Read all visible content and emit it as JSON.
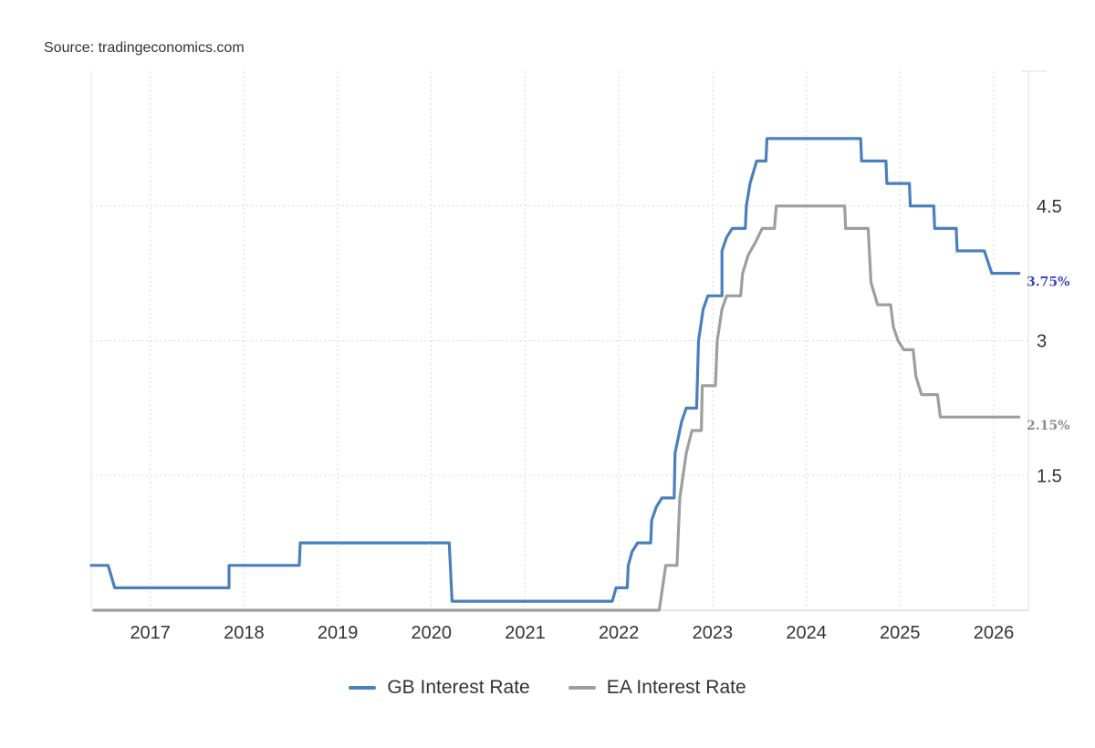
{
  "source_text": "Source: tradingeconomics.com",
  "chart_data": {
    "type": "line",
    "xlabel": "",
    "ylabel": "",
    "x_ticks": [
      "2017",
      "2018",
      "2019",
      "2020",
      "2021",
      "2022",
      "2023",
      "2024",
      "2025",
      "2026"
    ],
    "y_ticks": [
      1.5,
      3,
      4.5
    ],
    "y_tick_labels": [
      "1.5",
      "3",
      "4.5"
    ],
    "xlim": [
      2016.37,
      2026.37
    ],
    "ylim": [
      0,
      6
    ],
    "grid": true,
    "legend_position": "bottom",
    "series": [
      {
        "name": "GB Interest Rate",
        "color": "#4a7fbf",
        "end_label": "3.75%",
        "end_label_color": "#3a45c8",
        "points": [
          [
            2016.37,
            0.5
          ],
          [
            2016.55,
            0.5
          ],
          [
            2016.62,
            0.25
          ],
          [
            2017.84,
            0.25
          ],
          [
            2017.84,
            0.5
          ],
          [
            2018.59,
            0.5
          ],
          [
            2018.6,
            0.75
          ],
          [
            2020.19,
            0.75
          ],
          [
            2020.22,
            0.1
          ],
          [
            2021.93,
            0.1
          ],
          [
            2021.97,
            0.25
          ],
          [
            2022.09,
            0.25
          ],
          [
            2022.1,
            0.5
          ],
          [
            2022.14,
            0.65
          ],
          [
            2022.2,
            0.75
          ],
          [
            2022.34,
            0.75
          ],
          [
            2022.35,
            1.0
          ],
          [
            2022.4,
            1.15
          ],
          [
            2022.46,
            1.25
          ],
          [
            2022.59,
            1.25
          ],
          [
            2022.6,
            1.75
          ],
          [
            2022.67,
            2.1
          ],
          [
            2022.72,
            2.25
          ],
          [
            2022.83,
            2.25
          ],
          [
            2022.85,
            3.0
          ],
          [
            2022.9,
            3.35
          ],
          [
            2022.95,
            3.5
          ],
          [
            2023.1,
            3.5
          ],
          [
            2023.1,
            4.0
          ],
          [
            2023.15,
            4.15
          ],
          [
            2023.21,
            4.25
          ],
          [
            2023.35,
            4.25
          ],
          [
            2023.36,
            4.5
          ],
          [
            2023.4,
            4.75
          ],
          [
            2023.47,
            5.0
          ],
          [
            2023.57,
            5.0
          ],
          [
            2023.58,
            5.25
          ],
          [
            2024.58,
            5.25
          ],
          [
            2024.59,
            5.0
          ],
          [
            2024.85,
            5.0
          ],
          [
            2024.86,
            4.75
          ],
          [
            2025.1,
            4.75
          ],
          [
            2025.11,
            4.5
          ],
          [
            2025.36,
            4.5
          ],
          [
            2025.37,
            4.25
          ],
          [
            2025.6,
            4.25
          ],
          [
            2025.61,
            4.0
          ],
          [
            2025.9,
            4.0
          ],
          [
            2025.98,
            3.75
          ],
          [
            2026.27,
            3.75
          ]
        ]
      },
      {
        "name": "EA Interest Rate",
        "color": "#9e9e9e",
        "end_label": "2.15%",
        "end_label_color": "#8c8c8c",
        "points": [
          [
            2016.4,
            0.0
          ],
          [
            2022.43,
            0.0
          ],
          [
            2022.5,
            0.5
          ],
          [
            2022.62,
            0.5
          ],
          [
            2022.65,
            1.25
          ],
          [
            2022.72,
            1.75
          ],
          [
            2022.78,
            2.0
          ],
          [
            2022.88,
            2.0
          ],
          [
            2022.89,
            2.5
          ],
          [
            2023.03,
            2.5
          ],
          [
            2023.05,
            3.0
          ],
          [
            2023.1,
            3.35
          ],
          [
            2023.15,
            3.5
          ],
          [
            2023.3,
            3.5
          ],
          [
            2023.32,
            3.75
          ],
          [
            2023.38,
            3.95
          ],
          [
            2023.46,
            4.1
          ],
          [
            2023.53,
            4.25
          ],
          [
            2023.66,
            4.25
          ],
          [
            2023.68,
            4.5
          ],
          [
            2024.41,
            4.5
          ],
          [
            2024.42,
            4.25
          ],
          [
            2024.66,
            4.25
          ],
          [
            2024.69,
            3.65
          ],
          [
            2024.76,
            3.4
          ],
          [
            2024.9,
            3.4
          ],
          [
            2024.93,
            3.15
          ],
          [
            2024.98,
            3.0
          ],
          [
            2025.04,
            2.9
          ],
          [
            2025.14,
            2.9
          ],
          [
            2025.17,
            2.6
          ],
          [
            2025.23,
            2.4
          ],
          [
            2025.27,
            2.4
          ],
          [
            2025.4,
            2.4
          ],
          [
            2025.43,
            2.15
          ],
          [
            2026.27,
            2.15
          ]
        ]
      }
    ]
  }
}
